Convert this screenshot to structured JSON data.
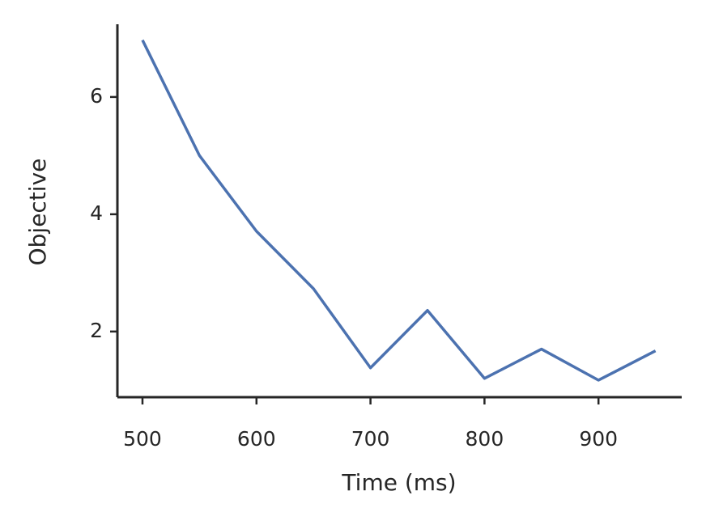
{
  "chart_data": {
    "type": "line",
    "x_label": "Time (ms)",
    "y_label": "Objective",
    "x": [
      500,
      550,
      600,
      650,
      700,
      750,
      800,
      850,
      900,
      950
    ],
    "series": [
      {
        "name": "Objective",
        "color": "#4c72b0",
        "values": [
          6.97,
          5.0,
          3.71,
          2.73,
          1.38,
          2.36,
          1.2,
          1.7,
          1.17,
          1.67
        ]
      }
    ],
    "xlim": [
      478,
      973
    ],
    "xticks": [
      500,
      600,
      700,
      800,
      900
    ],
    "ylim": [
      0.88,
      7.24
    ],
    "yticks": [
      2,
      4,
      6
    ],
    "grid": false
  }
}
